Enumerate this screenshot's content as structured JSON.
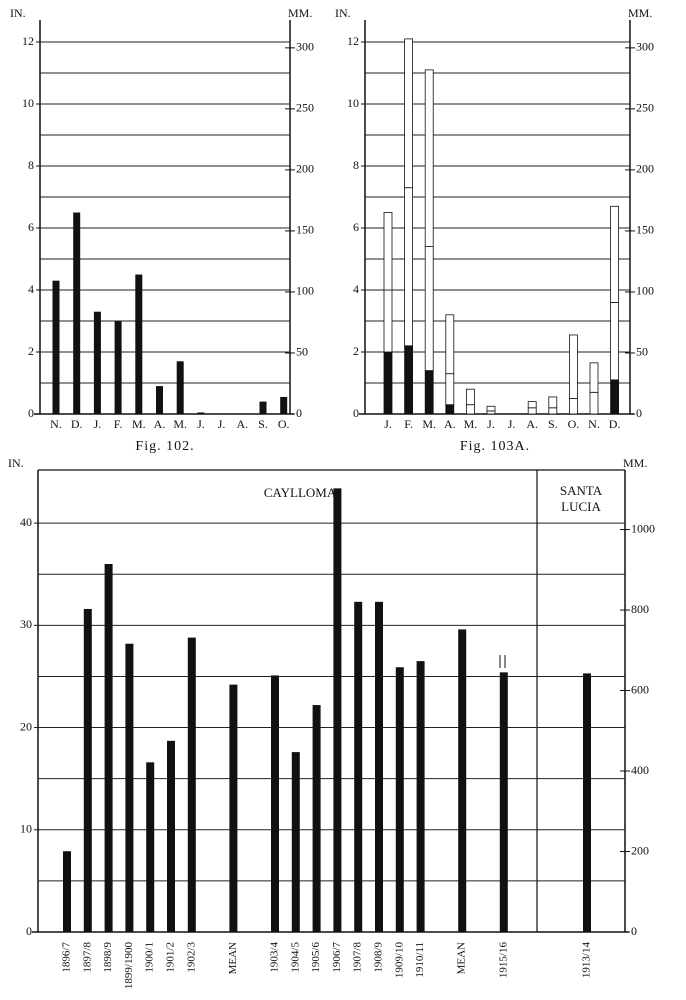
{
  "chart_data": [
    {
      "type": "bar",
      "title": "Fig. 102.",
      "y_label": "IN.",
      "y2_label": "MM.",
      "categories": [
        "N.",
        "D.",
        "J.",
        "F.",
        "M.",
        "A.",
        "M.",
        "J.",
        "J.",
        "A.",
        "S.",
        "O."
      ],
      "values": [
        4.3,
        6.5,
        3.3,
        3.0,
        4.5,
        0.9,
        1.7,
        0.05,
        0,
        0,
        0.4,
        0.55
      ],
      "color": "#111",
      "ylim": [
        0,
        12
      ],
      "yticks": [
        0,
        2,
        4,
        6,
        8,
        10,
        12
      ],
      "y_minor_ticks": [
        1,
        3,
        5,
        7,
        9,
        11
      ],
      "y2lim": [
        0,
        304.8
      ],
      "y2ticks": [
        0,
        50,
        100,
        150,
        200,
        250,
        300
      ],
      "grid": true
    },
    {
      "type": "stacked_bar",
      "title": "Fig. 103A.",
      "y_label": "IN.",
      "y2_label": "MM.",
      "categories": [
        "J.",
        "F.",
        "M.",
        "A.",
        "M.",
        "J.",
        "J.",
        "A.",
        "S.",
        "O.",
        "N.",
        "D."
      ],
      "series": [
        {
          "color": "#111",
          "values": [
            2.0,
            2.2,
            1.4,
            0.3,
            0,
            0,
            0,
            0,
            0,
            0,
            0,
            1.1
          ]
        },
        {
          "color": "#fff",
          "values": [
            2.0,
            5.1,
            4.0,
            1.0,
            0.3,
            0.1,
            0,
            0.2,
            0.2,
            0.5,
            0.7,
            2.5
          ]
        },
        {
          "color": "#fff",
          "values": [
            2.5,
            4.8,
            5.7,
            1.9,
            0.5,
            0.15,
            0,
            0.2,
            0.35,
            2.05,
            0.95,
            3.1
          ]
        }
      ],
      "ylim": [
        0,
        12
      ],
      "yticks": [
        0,
        2,
        4,
        6,
        8,
        10,
        12
      ],
      "y_minor_ticks": [
        1,
        3,
        5,
        7,
        9,
        11
      ],
      "y2lim": [
        0,
        304.8
      ],
      "y2ticks": [
        0,
        50,
        100,
        150,
        200,
        250,
        300
      ],
      "grid": true
    },
    {
      "type": "bar",
      "y_label": "IN.",
      "y2_label": "MM.",
      "annotations": [
        "CAYLLOMA",
        "SANTA LUCIA"
      ],
      "categories": [
        "1896/7",
        "1897/8",
        "1898/9",
        "1899/1900",
        "1900/1",
        "1901/2",
        "1902/3",
        "MEAN",
        "1903/4",
        "1904/5",
        "1905/6",
        "1906/7",
        "1907/8",
        "1908/9",
        "1909/10",
        "1910/11",
        "MEAN",
        "1915/16",
        "1913/14"
      ],
      "values": [
        7.9,
        31.6,
        36.0,
        28.2,
        16.6,
        18.7,
        28.8,
        24.2,
        25.1,
        17.6,
        22.2,
        43.4,
        32.3,
        32.3,
        25.9,
        26.5,
        29.6,
        25.4,
        25.3
      ],
      "color": "#111",
      "ylim": [
        0,
        45
      ],
      "yticks": [
        0,
        10,
        20,
        30,
        40
      ],
      "y_minor_ticks": [
        5,
        15,
        25,
        35
      ],
      "y2lim": [
        0,
        1143
      ],
      "y2ticks": [
        0,
        200,
        400,
        600,
        800,
        1000
      ],
      "grid": true
    }
  ]
}
